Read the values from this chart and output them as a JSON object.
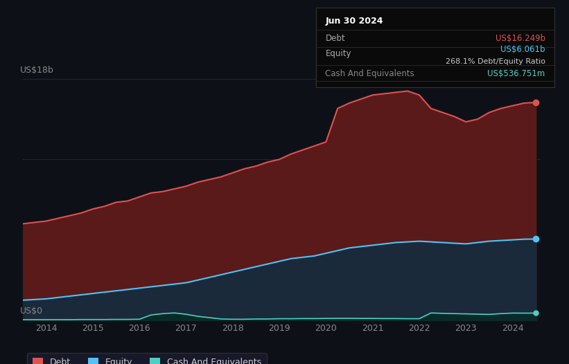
{
  "background_color": "#0d1117",
  "plot_bg_color": "#0d1117",
  "ylabel_text": "US$18b",
  "ylabel0_text": "US$0",
  "x_ticks": [
    2014,
    2015,
    2016,
    2017,
    2018,
    2019,
    2020,
    2021,
    2022,
    2023,
    2024
  ],
  "ylim": [
    0,
    19
  ],
  "debt_color": "#e05252",
  "equity_color": "#4fc3f7",
  "cash_color": "#4dd0c4",
  "debt_fill_color": "#5a1a1a",
  "equity_fill_color": "#1a2a3a",
  "cash_fill_color": "#0a2a28",
  "tooltip_bg": "#0a0a0a",
  "tooltip_border": "#333333",
  "tooltip_title": "Jun 30 2024",
  "tooltip_debt_label": "Debt",
  "tooltip_debt_value": "US$16.249b",
  "tooltip_equity_label": "Equity",
  "tooltip_equity_value": "US$6.061b",
  "tooltip_ratio": "268.1% Debt/Equity Ratio",
  "tooltip_cash_label": "Cash And Equivalents",
  "tooltip_cash_value": "US$536.751m",
  "legend_items": [
    "Debt",
    "Equity",
    "Cash And Equivalents"
  ],
  "years": [
    2013.5,
    2014.0,
    2014.25,
    2014.5,
    2014.75,
    2015.0,
    2015.25,
    2015.5,
    2015.75,
    2016.0,
    2016.25,
    2016.5,
    2016.75,
    2017.0,
    2017.25,
    2017.5,
    2017.75,
    2018.0,
    2018.25,
    2018.5,
    2018.75,
    2019.0,
    2019.25,
    2019.5,
    2019.75,
    2020.0,
    2020.25,
    2020.5,
    2020.75,
    2021.0,
    2021.25,
    2021.5,
    2021.75,
    2022.0,
    2022.25,
    2022.5,
    2022.75,
    2023.0,
    2023.25,
    2023.5,
    2023.75,
    2024.0,
    2024.25,
    2024.5
  ],
  "debt": [
    7.2,
    7.4,
    7.6,
    7.8,
    8.0,
    8.3,
    8.5,
    8.8,
    8.9,
    9.2,
    9.5,
    9.6,
    9.8,
    10.0,
    10.3,
    10.5,
    10.7,
    11.0,
    11.3,
    11.5,
    11.8,
    12.0,
    12.4,
    12.7,
    13.0,
    13.3,
    15.8,
    16.2,
    16.5,
    16.8,
    16.9,
    17.0,
    17.1,
    16.8,
    15.8,
    15.5,
    15.2,
    14.8,
    15.0,
    15.5,
    15.8,
    16.0,
    16.2,
    16.249
  ],
  "equity": [
    1.5,
    1.6,
    1.7,
    1.8,
    1.9,
    2.0,
    2.1,
    2.2,
    2.3,
    2.4,
    2.5,
    2.6,
    2.7,
    2.8,
    3.0,
    3.2,
    3.4,
    3.6,
    3.8,
    4.0,
    4.2,
    4.4,
    4.6,
    4.7,
    4.8,
    5.0,
    5.2,
    5.4,
    5.5,
    5.6,
    5.7,
    5.8,
    5.85,
    5.9,
    5.85,
    5.8,
    5.75,
    5.7,
    5.8,
    5.9,
    5.95,
    6.0,
    6.05,
    6.061
  ],
  "cash": [
    0.05,
    0.05,
    0.05,
    0.05,
    0.06,
    0.06,
    0.06,
    0.07,
    0.07,
    0.08,
    0.4,
    0.5,
    0.55,
    0.45,
    0.3,
    0.2,
    0.1,
    0.08,
    0.08,
    0.1,
    0.1,
    0.12,
    0.12,
    0.13,
    0.13,
    0.14,
    0.15,
    0.15,
    0.14,
    0.14,
    0.13,
    0.13,
    0.12,
    0.12,
    0.55,
    0.52,
    0.5,
    0.48,
    0.46,
    0.44,
    0.5,
    0.54,
    0.536,
    0.537
  ]
}
